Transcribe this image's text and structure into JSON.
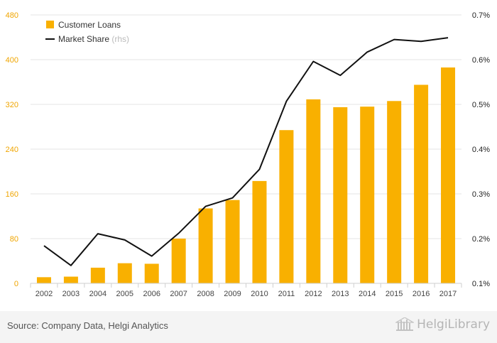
{
  "chart_data": {
    "type": "bar",
    "categories": [
      "2002",
      "2003",
      "2004",
      "2005",
      "2006",
      "2007",
      "2008",
      "2009",
      "2010",
      "2011",
      "2012",
      "2013",
      "2014",
      "2015",
      "2016",
      "2017"
    ],
    "series": [
      {
        "name": "Customer Loans",
        "type": "bar",
        "axis": "left",
        "values": [
          11,
          12,
          28,
          36,
          35,
          80,
          134,
          149,
          183,
          274,
          329,
          315,
          316,
          326,
          355,
          386
        ]
      },
      {
        "name": "Market Share",
        "name_suffix": "(rhs)",
        "type": "line",
        "axis": "right",
        "values": [
          0.184,
          0.14,
          0.211,
          0.197,
          0.161,
          0.212,
          0.272,
          0.291,
          0.355,
          0.507,
          0.596,
          0.565,
          0.617,
          0.645,
          0.641,
          0.649
        ]
      }
    ],
    "left_axis": {
      "ylim": [
        0,
        480
      ],
      "ticks": [
        "0",
        "80",
        "160",
        "240",
        "320",
        "400",
        "480"
      ]
    },
    "right_axis": {
      "ylim": [
        0.1,
        0.7
      ],
      "ticks": [
        "0.1%",
        "0.2%",
        "0.3%",
        "0.4%",
        "0.5%",
        "0.6%",
        "0.7%"
      ]
    },
    "grid": true,
    "legend": "top-left",
    "colors": {
      "bar": "#f9b000",
      "line": "#111111",
      "left_tick": "#f0a500",
      "right_tick": "#222222",
      "grid": "#e6e6e6"
    }
  },
  "footer": {
    "source": "Source: Company Data, Helgi Analytics",
    "brand": "HelgiLibrary"
  }
}
